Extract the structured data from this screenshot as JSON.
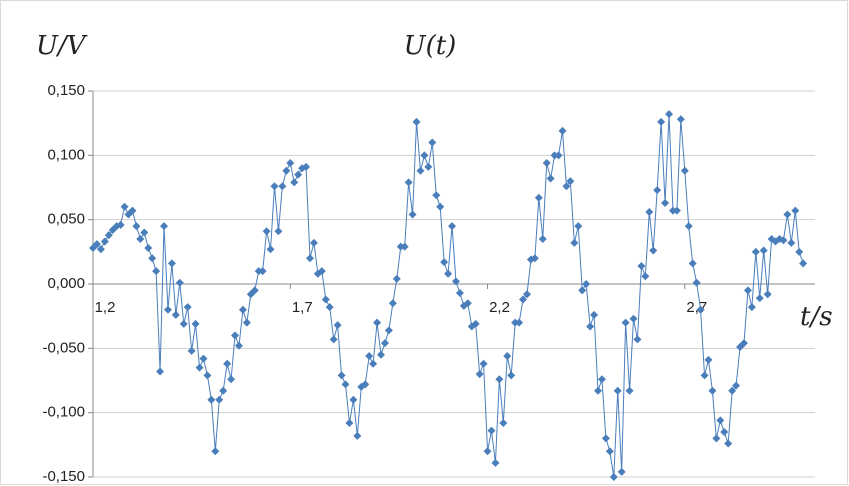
{
  "chart_data": {
    "type": "scatter-line",
    "title": "U(t)",
    "y_label": "U/V",
    "x_label": "t/s",
    "color": "#4a7ebb",
    "grid": true,
    "xlim": [
      1.2,
      3.03
    ],
    "ylim": [
      -0.15,
      0.15
    ],
    "xticks": [
      {
        "value": 1.2,
        "label": "1,2"
      },
      {
        "value": 1.7,
        "label": "1,7"
      },
      {
        "value": 2.2,
        "label": "2,2"
      },
      {
        "value": 2.7,
        "label": "2,7"
      }
    ],
    "yticks": [
      {
        "value": -0.15,
        "label": "-0,150"
      },
      {
        "value": -0.1,
        "label": "-0,100"
      },
      {
        "value": -0.05,
        "label": "-0,050"
      },
      {
        "value": 0,
        "label": "0,000"
      },
      {
        "value": 0.05,
        "label": "0,050"
      },
      {
        "value": 0.1,
        "label": "0,100"
      },
      {
        "value": 0.15,
        "label": "0,150"
      }
    ],
    "x": [
      1.2,
      1.21,
      1.22,
      1.23,
      1.24,
      1.25,
      1.26,
      1.27,
      1.28,
      1.29,
      1.3,
      1.31,
      1.32,
      1.33,
      1.34,
      1.35,
      1.36,
      1.37,
      1.38,
      1.39,
      1.4,
      1.41,
      1.42,
      1.43,
      1.44,
      1.45,
      1.46,
      1.47,
      1.48,
      1.49,
      1.5,
      1.51,
      1.52,
      1.53,
      1.54,
      1.55,
      1.56,
      1.57,
      1.58,
      1.59,
      1.6,
      1.61,
      1.62,
      1.63,
      1.64,
      1.65,
      1.66,
      1.67,
      1.68,
      1.69,
      1.7,
      1.71,
      1.72,
      1.73,
      1.74,
      1.75,
      1.76,
      1.77,
      1.78,
      1.79,
      1.8,
      1.81,
      1.82,
      1.83,
      1.84,
      1.85,
      1.86,
      1.87,
      1.88,
      1.89,
      1.9,
      1.91,
      1.92,
      1.93,
      1.94,
      1.95,
      1.96,
      1.97,
      1.98,
      1.99,
      2.0,
      2.01,
      2.02,
      2.03,
      2.04,
      2.05,
      2.06,
      2.07,
      2.08,
      2.09,
      2.1,
      2.11,
      2.12,
      2.13,
      2.14,
      2.15,
      2.16,
      2.17,
      2.18,
      2.19,
      2.2,
      2.21,
      2.22,
      2.23,
      2.24,
      2.25,
      2.26,
      2.27,
      2.28,
      2.29,
      2.3,
      2.31,
      2.32,
      2.33,
      2.34,
      2.35,
      2.36,
      2.37,
      2.38,
      2.39,
      2.4,
      2.41,
      2.42,
      2.43,
      2.44,
      2.45,
      2.46,
      2.47,
      2.48,
      2.49,
      2.5,
      2.51,
      2.52,
      2.53,
      2.54,
      2.55,
      2.56,
      2.57,
      2.58,
      2.59,
      2.6,
      2.61,
      2.62,
      2.63,
      2.64,
      2.65,
      2.66,
      2.67,
      2.68,
      2.69,
      2.7,
      2.71,
      2.72,
      2.73,
      2.74,
      2.75,
      2.76,
      2.77,
      2.78,
      2.79,
      2.8,
      2.81,
      2.82,
      2.83,
      2.84,
      2.85,
      2.86,
      2.87,
      2.88,
      2.89,
      2.9,
      2.91,
      2.92,
      2.93,
      2.94,
      2.95,
      2.96,
      2.97,
      2.98,
      2.99,
      3.0
    ],
    "values": [
      0.028,
      0.031,
      0.027,
      0.033,
      0.038,
      0.042,
      0.045,
      0.046,
      0.06,
      0.054,
      0.057,
      0.045,
      0.035,
      0.04,
      0.028,
      0.02,
      0.01,
      -0.068,
      0.045,
      -0.02,
      0.016,
      -0.024,
      0.001,
      -0.031,
      -0.018,
      -0.052,
      -0.031,
      -0.065,
      -0.058,
      -0.071,
      -0.09,
      -0.13,
      -0.09,
      -0.083,
      -0.062,
      -0.074,
      -0.04,
      -0.048,
      -0.02,
      -0.03,
      -0.008,
      -0.005,
      0.01,
      0.01,
      0.041,
      0.027,
      0.076,
      0.041,
      0.076,
      0.088,
      0.094,
      0.079,
      0.085,
      0.09,
      0.091,
      0.02,
      0.032,
      0.008,
      0.01,
      -0.012,
      -0.018,
      -0.043,
      -0.032,
      -0.071,
      -0.078,
      -0.108,
      -0.09,
      -0.118,
      -0.08,
      -0.078,
      -0.056,
      -0.062,
      -0.03,
      -0.055,
      -0.046,
      -0.036,
      -0.015,
      0.004,
      0.029,
      0.029,
      0.079,
      0.054,
      0.126,
      0.088,
      0.1,
      0.091,
      0.11,
      0.069,
      0.06,
      0.017,
      0.008,
      0.045,
      0.002,
      -0.007,
      -0.017,
      -0.015,
      -0.033,
      -0.031,
      -0.07,
      -0.062,
      -0.13,
      -0.114,
      -0.139,
      -0.074,
      -0.108,
      -0.056,
      -0.071,
      -0.03,
      -0.03,
      -0.012,
      -0.008,
      0.019,
      0.02,
      0.067,
      0.035,
      0.094,
      0.082,
      0.1,
      0.1,
      0.119,
      0.076,
      0.08,
      0.032,
      0.045,
      -0.005,
      0.0,
      -0.033,
      -0.024,
      -0.083,
      -0.074,
      -0.12,
      -0.13,
      -0.15,
      -0.083,
      -0.146,
      -0.03,
      -0.083,
      -0.027,
      -0.043,
      0.014,
      0.006,
      0.056,
      0.026,
      0.073,
      0.126,
      0.063,
      0.132,
      0.057,
      0.057,
      0.128,
      0.088,
      0.045,
      0.016,
      0.001,
      -0.02,
      -0.071,
      -0.059,
      -0.083,
      -0.12,
      -0.106,
      -0.115,
      -0.124,
      -0.083,
      -0.079,
      -0.049,
      -0.046,
      -0.005,
      -0.018,
      0.025,
      -0.011,
      0.026,
      -0.008,
      0.035,
      0.033,
      0.035,
      0.034,
      0.054,
      0.032,
      0.057,
      0.025,
      0.016
    ]
  }
}
